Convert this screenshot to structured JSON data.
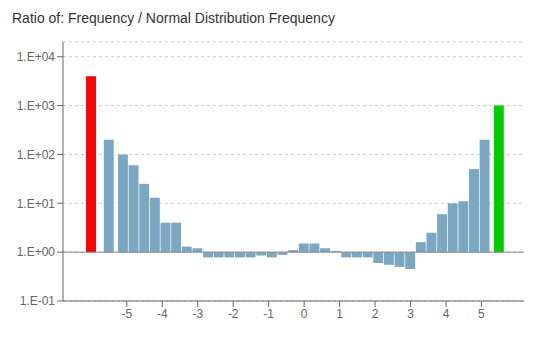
{
  "chart_data": {
    "type": "bar",
    "title": "Ratio of: Frequency / Normal Distribution Frequency",
    "x": [
      -6.0,
      -5.5,
      -5.1,
      -4.8,
      -4.5,
      -4.2,
      -3.9,
      -3.6,
      -3.3,
      -3.0,
      -2.7,
      -2.4,
      -2.1,
      -1.8,
      -1.5,
      -1.2,
      -0.9,
      -0.6,
      -0.3,
      0.0,
      0.3,
      0.6,
      0.9,
      1.2,
      1.5,
      1.8,
      2.1,
      2.4,
      2.7,
      3.0,
      3.3,
      3.6,
      3.9,
      4.2,
      4.5,
      4.8,
      5.1,
      5.5
    ],
    "values": [
      4000,
      200,
      100,
      60,
      25,
      13,
      4,
      4,
      1.3,
      1.2,
      0.78,
      0.78,
      0.78,
      0.78,
      0.78,
      0.85,
      0.78,
      0.88,
      1.1,
      1.5,
      1.5,
      1.2,
      1.05,
      0.78,
      0.78,
      0.78,
      0.6,
      0.55,
      0.5,
      0.45,
      1.6,
      2.5,
      6,
      10,
      11,
      50,
      200,
      1000
    ],
    "colors": [
      "#ff0000",
      "#7ba7c0",
      "#7ba7c0",
      "#7ba7c0",
      "#7ba7c0",
      "#7ba7c0",
      "#7ba7c0",
      "#7ba7c0",
      "#7ba7c0",
      "#7ba7c0",
      "#7ba7c0",
      "#7ba7c0",
      "#7ba7c0",
      "#7ba7c0",
      "#7ba7c0",
      "#7ba7c0",
      "#7ba7c0",
      "#7ba7c0",
      "#7ba7c0",
      "#7ba7c0",
      "#7ba7c0",
      "#7ba7c0",
      "#7ba7c0",
      "#7ba7c0",
      "#7ba7c0",
      "#7ba7c0",
      "#7ba7c0",
      "#7ba7c0",
      "#7ba7c0",
      "#7ba7c0",
      "#7ba7c0",
      "#7ba7c0",
      "#7ba7c0",
      "#7ba7c0",
      "#7ba7c0",
      "#7ba7c0",
      "#7ba7c0",
      "#00cc00"
    ],
    "log": "y",
    "xlim": [
      -6.8,
      6.2
    ],
    "xticks": [
      -5,
      -4,
      -3,
      -2,
      -1,
      0,
      1,
      2,
      3,
      4,
      5
    ],
    "ylim": [
      0.1,
      20000
    ],
    "yticks": [
      {
        "value": 0.1,
        "label": "1.E-01"
      },
      {
        "value": 1.0,
        "label": "1.E+00"
      },
      {
        "value": 10.0,
        "label": "1.E+01"
      },
      {
        "value": 100.0,
        "label": "1.E+02"
      },
      {
        "value": 1000.0,
        "label": "1.E+03"
      },
      {
        "value": 10000.0,
        "label": "1.E+04"
      }
    ],
    "grid": true
  }
}
